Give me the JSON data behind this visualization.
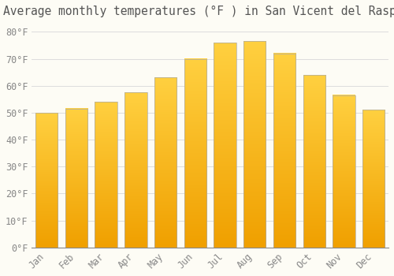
{
  "title": "Average monthly temperatures (°F ) in San Vicent del Raspeig",
  "months": [
    "Jan",
    "Feb",
    "Mar",
    "Apr",
    "May",
    "Jun",
    "Jul",
    "Aug",
    "Sep",
    "Oct",
    "Nov",
    "Dec"
  ],
  "values": [
    50,
    51.5,
    54,
    57.5,
    63,
    70,
    76,
    76.5,
    72,
    64,
    56.5,
    51
  ],
  "bar_color_top": "#FFD040",
  "bar_color_bottom": "#F0A000",
  "bar_edge_color": "#AAAAAA",
  "background_color": "#FDFCF5",
  "grid_color": "#DDDDDD",
  "tick_label_color": "#888888",
  "title_color": "#555555",
  "ylim": [
    0,
    83
  ],
  "yticks": [
    0,
    10,
    20,
    30,
    40,
    50,
    60,
    70,
    80
  ],
  "ytick_labels": [
    "0°F",
    "10°F",
    "20°F",
    "30°F",
    "40°F",
    "50°F",
    "60°F",
    "70°F",
    "80°F"
  ],
  "title_fontsize": 10.5,
  "tick_fontsize": 8.5,
  "bar_width": 0.75
}
